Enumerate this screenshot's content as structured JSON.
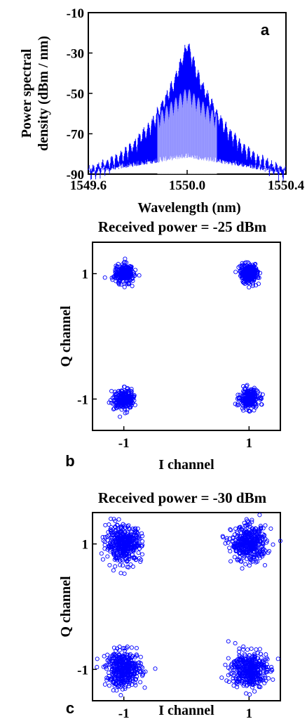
{
  "chart_data": [
    {
      "type": "line",
      "panel_label": "a",
      "xlabel": "Wavelength (nm)",
      "ylabel_lines": [
        "Power spectral",
        "density (dBm / nm)"
      ],
      "xlim": [
        1549.6,
        1550.4
      ],
      "ylim": [
        -90,
        -10
      ],
      "x_tick_labels": [
        "1549.6",
        "1550.0",
        "1550.4"
      ],
      "y_tick_labels": [
        "-10",
        "-30",
        "-50",
        "-70",
        "-90"
      ],
      "x_tick_values": [
        1549.6,
        1550.0,
        1550.4
      ],
      "y_tick_values": [
        -10,
        -30,
        -50,
        -70,
        -90
      ],
      "series": [
        {
          "color": "#0000ff",
          "x": [
            1549.6,
            1549.65,
            1549.7,
            1549.75,
            1549.8,
            1549.85,
            1549.9,
            1549.95,
            1550.0,
            1550.05,
            1550.1,
            1550.15,
            1550.2,
            1550.25,
            1550.3,
            1550.35,
            1550.4
          ],
          "envelope_dbm": [
            -85,
            -83,
            -80,
            -76,
            -70,
            -63,
            -52,
            -40,
            -22,
            -40,
            -52,
            -63,
            -70,
            -76,
            -80,
            -83,
            -85
          ],
          "floor_dbm": [
            -90,
            -89,
            -88,
            -87,
            -86,
            -85,
            -84,
            -83,
            -82,
            -83,
            -84,
            -85,
            -86,
            -87,
            -88,
            -89,
            -90
          ]
        }
      ]
    },
    {
      "type": "scatter",
      "title": "Received power = -25 dBm",
      "panel_label": "b",
      "xlabel": "I channel",
      "ylabel": "Q channel",
      "xlim": [
        -1.5,
        1.5
      ],
      "ylim": [
        -1.5,
        1.5
      ],
      "x_tick_labels": [
        "-1",
        "1"
      ],
      "y_tick_labels": [
        "1",
        "-1"
      ],
      "x_tick_values": [
        -1,
        1
      ],
      "y_tick_values": [
        1,
        -1
      ],
      "symbol_centers": [
        [
          -1,
          1
        ],
        [
          1,
          1
        ],
        [
          -1,
          -1
        ],
        [
          1,
          -1
        ]
      ],
      "spread_sigma": 0.075,
      "points_per_symbol": 260,
      "color": "#0000ff"
    },
    {
      "type": "scatter",
      "title": "Received power = -30 dBm",
      "panel_label": "c",
      "xlabel": "I channel",
      "ylabel": "Q channel",
      "xlim": [
        -1.5,
        1.5
      ],
      "ylim": [
        -1.5,
        1.5
      ],
      "x_tick_labels": [
        "-1",
        "1"
      ],
      "y_tick_labels": [
        "1",
        "-1"
      ],
      "x_tick_values": [
        -1,
        1
      ],
      "y_tick_values": [
        1,
        -1
      ],
      "symbol_centers": [
        [
          -1,
          1
        ],
        [
          1,
          1
        ],
        [
          -1,
          -1
        ],
        [
          1,
          -1
        ]
      ],
      "spread_sigma": 0.14,
      "points_per_symbol": 420,
      "color": "#0000ff"
    }
  ]
}
